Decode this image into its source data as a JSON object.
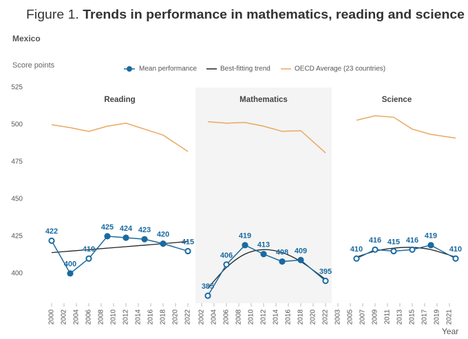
{
  "header": {
    "figure_label": "Figure 1.",
    "title": "Trends in performance in mathematics, reading and science"
  },
  "subtitle": "Mexico",
  "chart_data": [
    {
      "type": "line",
      "title": "Reading",
      "y_label": "Score points",
      "ylim": [
        380,
        525
      ],
      "yticks": [
        400,
        425,
        450,
        475,
        500,
        525
      ],
      "x": [
        2000,
        2003,
        2006,
        2009,
        2012,
        2015,
        2018,
        2022
      ],
      "xlim": [
        1999,
        2023
      ],
      "xticks": [
        2000,
        2002,
        2004,
        2006,
        2008,
        2010,
        2012,
        2014,
        2016,
        2018,
        2020,
        2022
      ],
      "series": [
        {
          "name": "Mean performance",
          "color": "#1a6aa0",
          "values": [
            422,
            400,
            410,
            425,
            424,
            423,
            420,
            415
          ],
          "markers_filled": [
            false,
            true,
            false,
            true,
            true,
            true,
            true,
            false
          ]
        },
        {
          "name": "Best-fitting trend",
          "color": "#222222",
          "values": [
            414,
            415,
            416,
            417,
            418,
            419,
            420,
            421.5
          ]
        },
        {
          "name": "OECD Average (23 countries)",
          "color": "#e8a860",
          "values": [
            500,
            498,
            495.5,
            499,
            501,
            497,
            493,
            482
          ]
        }
      ]
    },
    {
      "type": "line",
      "title": "Mathematics",
      "shaded": true,
      "ylim": [
        380,
        525
      ],
      "x": [
        2003,
        2006,
        2009,
        2012,
        2015,
        2018,
        2022
      ],
      "xlim": [
        2001,
        2023
      ],
      "xticks": [
        2002,
        2004,
        2006,
        2008,
        2010,
        2012,
        2014,
        2016,
        2018,
        2020,
        2022
      ],
      "series": [
        {
          "color": "#1a6aa0",
          "values": [
            385,
            406,
            419,
            413,
            408,
            409,
            395
          ],
          "markers_filled": [
            false,
            false,
            true,
            true,
            true,
            true,
            false
          ]
        },
        {
          "color": "#222222",
          "values": [
            390,
            404,
            413,
            416,
            414,
            408,
            396
          ]
        },
        {
          "color": "#e8a860",
          "values": [
            502,
            501,
            501.5,
            499,
            495.5,
            496,
            481
          ]
        }
      ]
    },
    {
      "type": "line",
      "title": "Science",
      "x_label": "Year",
      "ylim": [
        380,
        525
      ],
      "x": [
        2006,
        2009,
        2012,
        2015,
        2018,
        2022
      ],
      "xlim": [
        2002,
        2023
      ],
      "xticks": [
        2003,
        2005,
        2007,
        2009,
        2011,
        2013,
        2015,
        2017,
        2019,
        2021
      ],
      "series": [
        {
          "color": "#1a6aa0",
          "values": [
            410,
            416,
            415,
            416,
            419,
            410
          ],
          "markers_filled": [
            false,
            false,
            false,
            false,
            true,
            false
          ]
        },
        {
          "color": "#222222",
          "values": [
            411,
            415,
            417,
            417.5,
            416,
            411
          ]
        },
        {
          "color": "#e8a860",
          "values": [
            503,
            506,
            505,
            497,
            493.5,
            491
          ]
        }
      ]
    }
  ]
}
